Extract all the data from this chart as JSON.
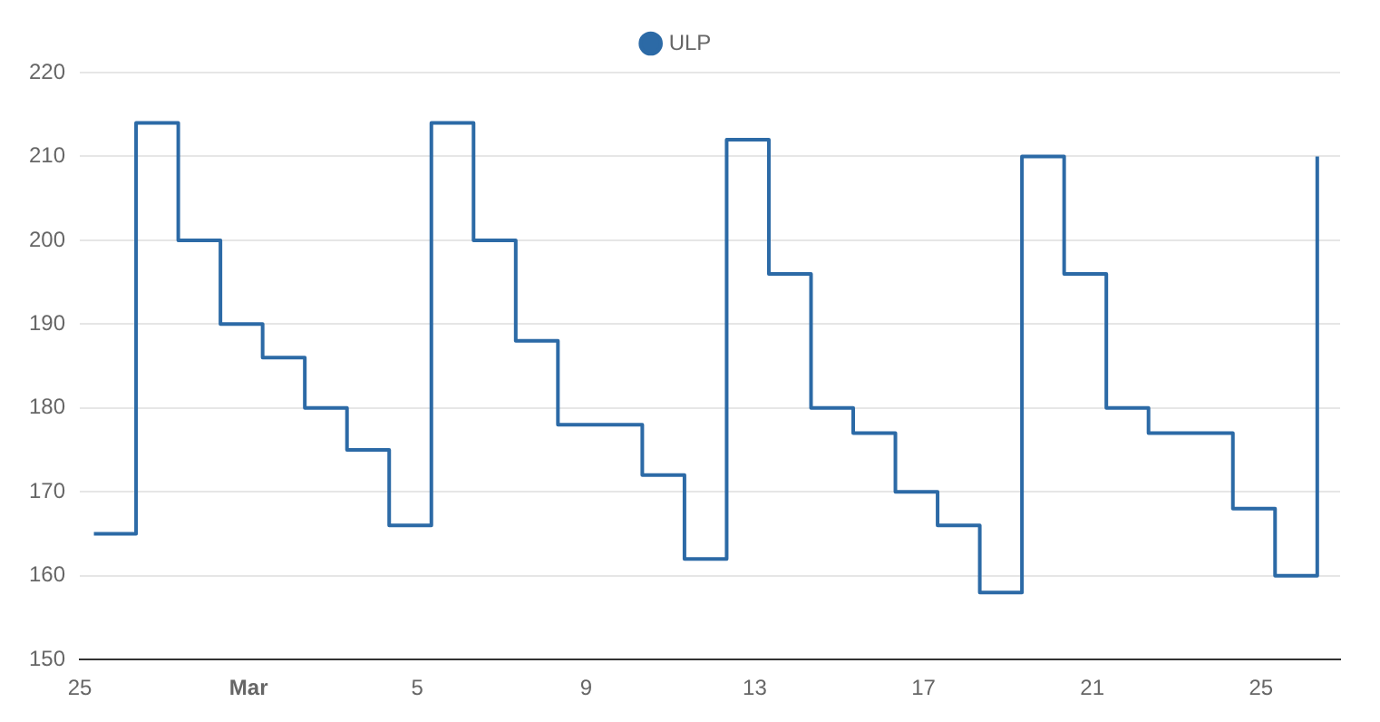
{
  "chart_data": {
    "type": "step",
    "legend": "top",
    "marker": "none",
    "grid": "y",
    "x": [
      "--02-25T08:00",
      "--02-26T08:00",
      "--02-27T08:00",
      "--02-28T08:00",
      "--03-01T08:00",
      "--03-02T08:00",
      "--03-03T08:00",
      "--03-04T08:00",
      "--03-05T08:00",
      "--03-06T08:00",
      "--03-07T08:00",
      "--03-08T08:00",
      "--03-09T08:00",
      "--03-10T08:00",
      "--03-11T08:00",
      "--03-12T08:00",
      "--03-13T08:00",
      "--03-14T08:00",
      "--03-15T08:00",
      "--03-16T08:00",
      "--03-17T08:00",
      "--03-18T08:00",
      "--03-19T08:00",
      "--03-20T08:00",
      "--03-21T08:00",
      "--03-22T08:00",
      "--03-23T08:00",
      "--03-24T08:00",
      "--03-25T08:00",
      "--03-26T08:00"
    ],
    "series": [
      {
        "name": "ULP",
        "color": "#2c6aa6",
        "values": [
          165,
          214,
          200,
          190,
          186,
          180,
          175,
          166,
          214,
          200,
          188,
          178,
          178,
          172,
          162,
          212,
          196,
          180,
          177,
          170,
          166,
          158,
          210,
          196,
          180,
          177,
          177,
          168,
          160,
          210
        ]
      }
    ],
    "xlim": [
      "--02-25T00:00",
      "--03-26T21:00"
    ],
    "xticks": [
      {
        "value": "--02-25",
        "label": "25"
      },
      {
        "value": "--03-01",
        "label": "Mar"
      },
      {
        "value": "--03-05",
        "label": "5"
      },
      {
        "value": "--03-09",
        "label": "9"
      },
      {
        "value": "--03-13",
        "label": "13"
      },
      {
        "value": "--03-17",
        "label": "17"
      },
      {
        "value": "--03-21",
        "label": "21"
      },
      {
        "value": "--03-25",
        "label": "25"
      }
    ],
    "ylim": [
      150,
      220
    ],
    "yticks": [
      150,
      160,
      170,
      180,
      190,
      200,
      210,
      220
    ]
  }
}
